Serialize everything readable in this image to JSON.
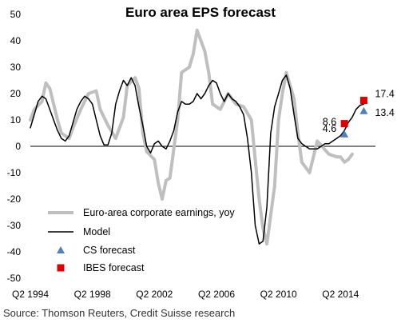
{
  "chart_data": {
    "type": "line",
    "title": "Euro area EPS forecast",
    "source": "Source: Thomson Reuters, Credit Suisse research",
    "xlim": [
      1994.25,
      2016.5
    ],
    "ylim": [
      -50,
      50
    ],
    "y_ticks": [
      50,
      40,
      30,
      20,
      10,
      0,
      -10,
      -20,
      -30,
      -40,
      -50
    ],
    "x_ticks": [
      {
        "label": "Q2 1994",
        "x": 1994.25
      },
      {
        "label": "Q2 1998",
        "x": 1998.25
      },
      {
        "label": "Q2 2002",
        "x": 2002.25
      },
      {
        "label": "Q2 2006",
        "x": 2006.25
      },
      {
        "label": "Q2 2010",
        "x": 2010.25
      },
      {
        "label": "Q2 2014",
        "x": 2014.25
      }
    ],
    "legend_position": "bottom-left",
    "series": [
      {
        "name": "Euro-area corporate earnings, yoy",
        "color": "#bfbfbf",
        "x": [
          1994.25,
          1994.5,
          1995,
          1995.25,
          1995.5,
          1996,
          1996.25,
          1996.75,
          1997,
          1997.5,
          1998,
          1998.5,
          1998.75,
          1999.25,
          1999.75,
          2000.25,
          2000.5,
          2001,
          2001.25,
          2001.5,
          2001.75,
          2002.25,
          2002.5,
          2002.75,
          2003,
          2003.25,
          2003.75,
          2004,
          2004.5,
          2004.75,
          2005,
          2005.5,
          2005.75,
          2006,
          2006.5,
          2007,
          2007.5,
          2008,
          2008.5,
          2008.75,
          2009,
          2009.25,
          2009.5,
          2010,
          2010.25,
          2010.5,
          2010.75,
          2011.25,
          2011.5,
          2011.75,
          2012.25,
          2012.75,
          2013.5,
          2014,
          2014.25,
          2014.5,
          2014.75,
          2015
        ],
        "y": [
          10,
          14,
          17,
          24,
          22,
          10,
          5,
          3,
          7,
          14,
          20,
          21,
          14,
          8,
          3,
          11,
          23,
          26,
          22,
          5,
          -2,
          -5,
          -14,
          -20,
          -13,
          -12,
          10,
          28,
          30,
          35,
          44,
          36,
          28,
          16,
          14,
          20,
          16,
          15,
          10,
          -5,
          -20,
          -31,
          -37,
          -15,
          10,
          20,
          28,
          18,
          5,
          -6,
          -10,
          2,
          -3,
          -4,
          -4,
          -6,
          -5,
          -3
        ]
      },
      {
        "name": "Model",
        "color": "#000000",
        "x": [
          1994.25,
          1994.5,
          1994.75,
          1995,
          1995.25,
          1995.5,
          1995.75,
          1996,
          1996.25,
          1996.5,
          1996.75,
          1997,
          1997.25,
          1997.5,
          1997.75,
          1998,
          1998.25,
          1998.5,
          1998.75,
          1999,
          1999.25,
          1999.5,
          1999.75,
          2000,
          2000.25,
          2000.5,
          2000.75,
          2001,
          2001.25,
          2001.5,
          2001.75,
          2002,
          2002.25,
          2002.5,
          2002.75,
          2003,
          2003.25,
          2003.5,
          2003.75,
          2004,
          2004.25,
          2004.5,
          2004.75,
          2005,
          2005.25,
          2005.5,
          2005.75,
          2006,
          2006.25,
          2006.5,
          2006.75,
          2007,
          2007.25,
          2007.5,
          2007.75,
          2008,
          2008.25,
          2008.5,
          2008.75,
          2009,
          2009.25,
          2009.5,
          2009.75,
          2010,
          2010.25,
          2010.5,
          2010.75,
          2011,
          2011.25,
          2011.5,
          2011.75,
          2012,
          2012.25,
          2012.5,
          2012.75,
          2013,
          2013.25,
          2013.5,
          2013.75,
          2014,
          2014.25,
          2014.5,
          2014.75,
          2015,
          2015.25,
          2015.5,
          2015.75
        ],
        "y": [
          7,
          12,
          17,
          19,
          18,
          14,
          10,
          6,
          3,
          2,
          4,
          9,
          14,
          17,
          19,
          18,
          16,
          10,
          4,
          0.5,
          0.5,
          5,
          16,
          21,
          25,
          23,
          26,
          23,
          15,
          8,
          0,
          -2.5,
          1,
          2,
          0,
          -1,
          2,
          6,
          13,
          17,
          16,
          16,
          17,
          20,
          18,
          20,
          23,
          25,
          24,
          20,
          17,
          20,
          18,
          17,
          15,
          12,
          3,
          -10,
          -30,
          -37,
          -36,
          -23,
          5,
          15,
          20,
          25,
          27,
          22,
          12,
          3,
          1,
          0,
          -1,
          -1,
          -1,
          0,
          1,
          1,
          2,
          3,
          4,
          6,
          9,
          11,
          14,
          15.5,
          16
        ]
      },
      {
        "name": "CS forecast",
        "color": "#4f81bd",
        "marker": "triangle",
        "x": [
          2014.5,
          2015.75
        ],
        "y": [
          4.6,
          13.4
        ],
        "labels": [
          "4.6",
          "13.4"
        ]
      },
      {
        "name": "IBES forecast",
        "color": "#e00000",
        "marker": "square",
        "x": [
          2014.5,
          2015.75
        ],
        "y": [
          8.6,
          17.4
        ],
        "labels": [
          "8.6",
          "17.4"
        ]
      }
    ]
  }
}
